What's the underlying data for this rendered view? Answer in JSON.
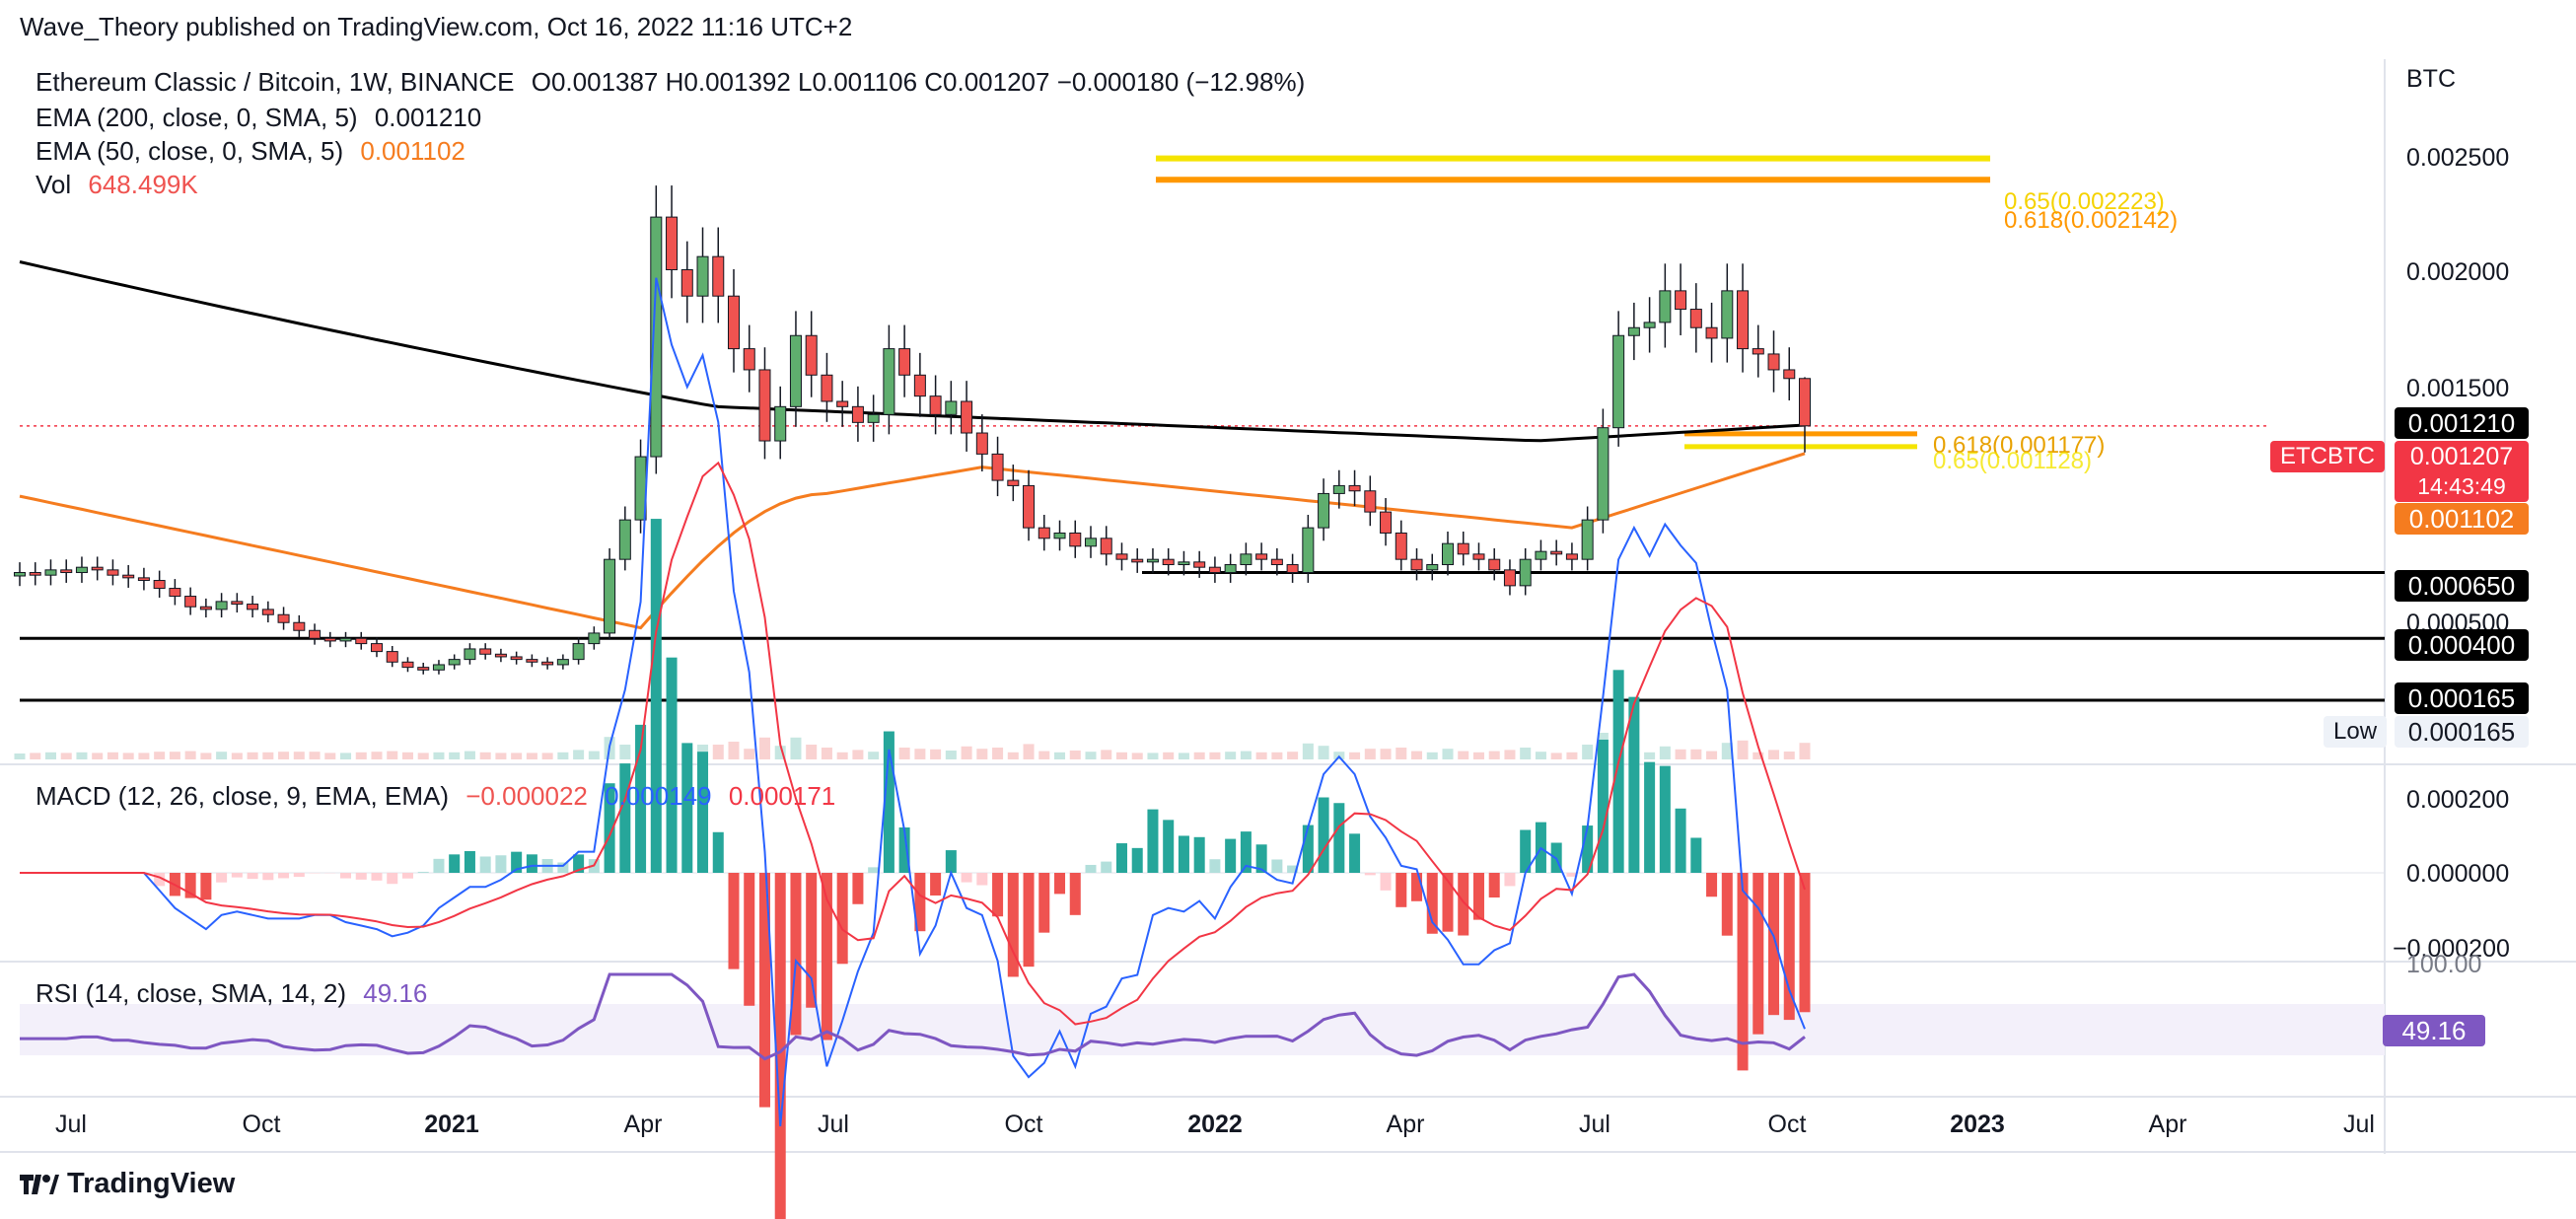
{
  "header": {
    "published": "Wave_Theory published on TradingView.com, Oct 16, 2022 11:16 UTC+2"
  },
  "legend": {
    "symbol_line": {
      "name": "Ethereum Classic / Bitcoin, 1W, BINANCE",
      "ohlc": "O0.001387  H0.001392  L0.001106  C0.001207  −0.000180 (−12.98%)"
    },
    "ema200": {
      "label": "EMA (200, close, 0, SMA, 5)",
      "value": "0.001210"
    },
    "ema50": {
      "label": "EMA (50, close, 0, SMA, 5)",
      "value": "0.001102"
    },
    "vol": {
      "label": "Vol",
      "value": "648.499K"
    }
  },
  "macd_legend": {
    "label": "MACD (12, 26, close, 9, EMA, EMA)",
    "v1": "−0.000022",
    "v2": "0.000149",
    "v3": "0.000171"
  },
  "rsi_legend": {
    "label": "RSI (14, close, SMA, 14, 2)",
    "value": "49.16"
  },
  "price_axis": {
    "unit": "BTC",
    "ticks": [
      "0.002500",
      "0.002000",
      "0.001500",
      "0.000500"
    ],
    "macd_ticks": [
      "0.000200",
      "0.000000",
      "−0.000200"
    ],
    "rsi_ticks": [
      "100.00"
    ]
  },
  "price_tags": {
    "ema200": "0.001210",
    "last_symbol": "ETCBTC",
    "last": "0.001207",
    "countdown": "14:43:49",
    "ema50": "0.001102",
    "s1": "0.000650",
    "s2": "0.000400",
    "s3": "0.000165",
    "low_label": "Low",
    "low": "0.000165",
    "rsi": "49.16"
  },
  "fib_labels": {
    "upper_065": "0.65(0.002223)",
    "upper_0618": "0.618(0.002142)",
    "lower_0618": "0.618(0.001177)",
    "lower_065": "0.65(0.001128)"
  },
  "time_axis": [
    "Jul",
    "Oct",
    "2021",
    "Apr",
    "Jul",
    "Oct",
    "2022",
    "Apr",
    "Jul",
    "Oct",
    "2023",
    "Apr",
    "Jul"
  ],
  "footer": {
    "brand": "TradingView"
  },
  "colors": {
    "up": "#26a69a",
    "up_body": "#5fae6e",
    "down": "#ef5350",
    "ema200": "#000000",
    "ema50": "#f57c1f",
    "fib_yellow": "#f5e400",
    "fib_orange": "#ff9800",
    "macd": "#2962ff",
    "signal": "#f23645",
    "rsi": "#7e57c2"
  },
  "chart_data": {
    "type": "candlestick",
    "title": "Ethereum Classic / Bitcoin, 1W, BINANCE",
    "ylabel": "BTC",
    "ylim": [
      0.000165,
      0.0026
    ],
    "x_ticks": [
      "Jul",
      "Oct",
      "2021",
      "Apr",
      "Jul",
      "Oct",
      "2022",
      "Apr",
      "Jul",
      "Oct",
      "2023",
      "Apr",
      "Jul"
    ],
    "last_candle": {
      "open": 0.001387,
      "high": 0.001392,
      "low": 0.001106,
      "close": 0.001207,
      "change": -0.00018,
      "change_pct": -12.98
    },
    "close": [
      0.00065,
      0.00064,
      0.00066,
      0.00065,
      0.00067,
      0.00066,
      0.00064,
      0.00063,
      0.00062,
      0.00059,
      0.00056,
      0.00052,
      0.00051,
      0.00054,
      0.00053,
      0.00051,
      0.00049,
      0.00046,
      0.00043,
      0.0004,
      0.00039,
      0.0004,
      0.00038,
      0.00035,
      0.00031,
      0.00029,
      0.00028,
      0.0003,
      0.00032,
      0.00036,
      0.00034,
      0.00033,
      0.00032,
      0.00031,
      0.0003,
      0.00032,
      0.00038,
      0.00042,
      0.0007,
      0.00085,
      0.00109,
      0.002,
      0.0018,
      0.0017,
      0.00185,
      0.0017,
      0.0015,
      0.00142,
      0.00115,
      0.00128,
      0.00155,
      0.0014,
      0.0013,
      0.00128,
      0.00122,
      0.00125,
      0.0015,
      0.0014,
      0.00132,
      0.00125,
      0.0013,
      0.00118,
      0.0011,
      0.001,
      0.00098,
      0.00082,
      0.00078,
      0.0008,
      0.00075,
      0.00078,
      0.00072,
      0.0007,
      0.00069,
      0.0007,
      0.00068,
      0.00069,
      0.00067,
      0.00065,
      0.00068,
      0.00072,
      0.0007,
      0.00068,
      0.00065,
      0.00082,
      0.00095,
      0.00098,
      0.00096,
      0.00088,
      0.0008,
      0.0007,
      0.00066,
      0.00068,
      0.00076,
      0.00072,
      0.0007,
      0.00066,
      0.0006,
      0.0007,
      0.00073,
      0.00072,
      0.0007,
      0.00085,
      0.0012,
      0.00155,
      0.00158,
      0.0016,
      0.00172,
      0.00165,
      0.00158,
      0.00154,
      0.00172,
      0.0015,
      0.00148,
      0.00142,
      0.001387,
      0.001207
    ],
    "ema200": {
      "start": 0.00183,
      "turn": 0.00128,
      "end": 0.00121
    },
    "ema50": {
      "start": 0.00094,
      "min": 0.00044,
      "end": 0.001102
    },
    "horizontal_levels": [
      0.00065,
      0.0004,
      0.000165
    ],
    "fib_levels": [
      {
        "label": "0.65",
        "value": 0.002223
      },
      {
        "label": "0.618",
        "value": 0.002142
      },
      {
        "label": "0.618",
        "value": 0.001177
      },
      {
        "label": "0.65",
        "value": 0.001128
      }
    ],
    "macd": {
      "macd_last": -2.2e-05,
      "signal_last": 0.000149,
      "hist_last": 0.000171,
      "ylim": [
        -0.0002,
        0.0002
      ]
    },
    "rsi": {
      "last": 49.16,
      "ylim": [
        0,
        100
      ]
    }
  }
}
